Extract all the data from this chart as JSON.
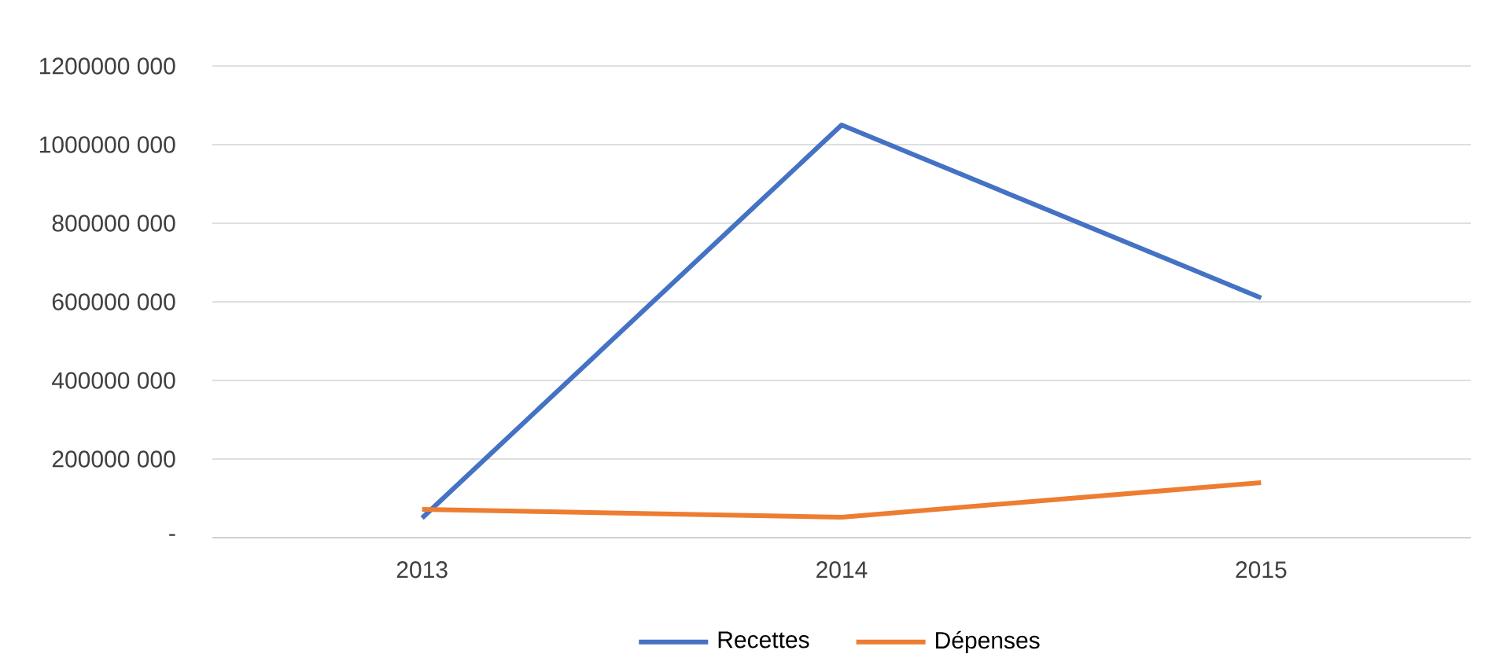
{
  "chart_data": {
    "type": "line",
    "categories": [
      "2013",
      "2014",
      "2015"
    ],
    "series": [
      {
        "name": "Recettes",
        "color": "#4472c4",
        "values": [
          50000000,
          1050000000,
          610000000
        ]
      },
      {
        "name": "Dépenses",
        "color": "#ed7d31",
        "values": [
          72000000,
          52000000,
          140000000
        ]
      }
    ],
    "ylim": [
      0,
      1200000000
    ],
    "yticks": [
      {
        "value": 0,
        "label": "-"
      },
      {
        "value": 200000000,
        "label": "200000 000"
      },
      {
        "value": 400000000,
        "label": "400000 000"
      },
      {
        "value": 600000000,
        "label": "600000 000"
      },
      {
        "value": 800000000,
        "label": "800000 000"
      },
      {
        "value": 1000000000,
        "label": "1000000 000"
      },
      {
        "value": 1200000000,
        "label": "1200000 000"
      }
    ],
    "grid": "y",
    "legend": "bottom",
    "marker": "none",
    "line_style": "solid"
  }
}
